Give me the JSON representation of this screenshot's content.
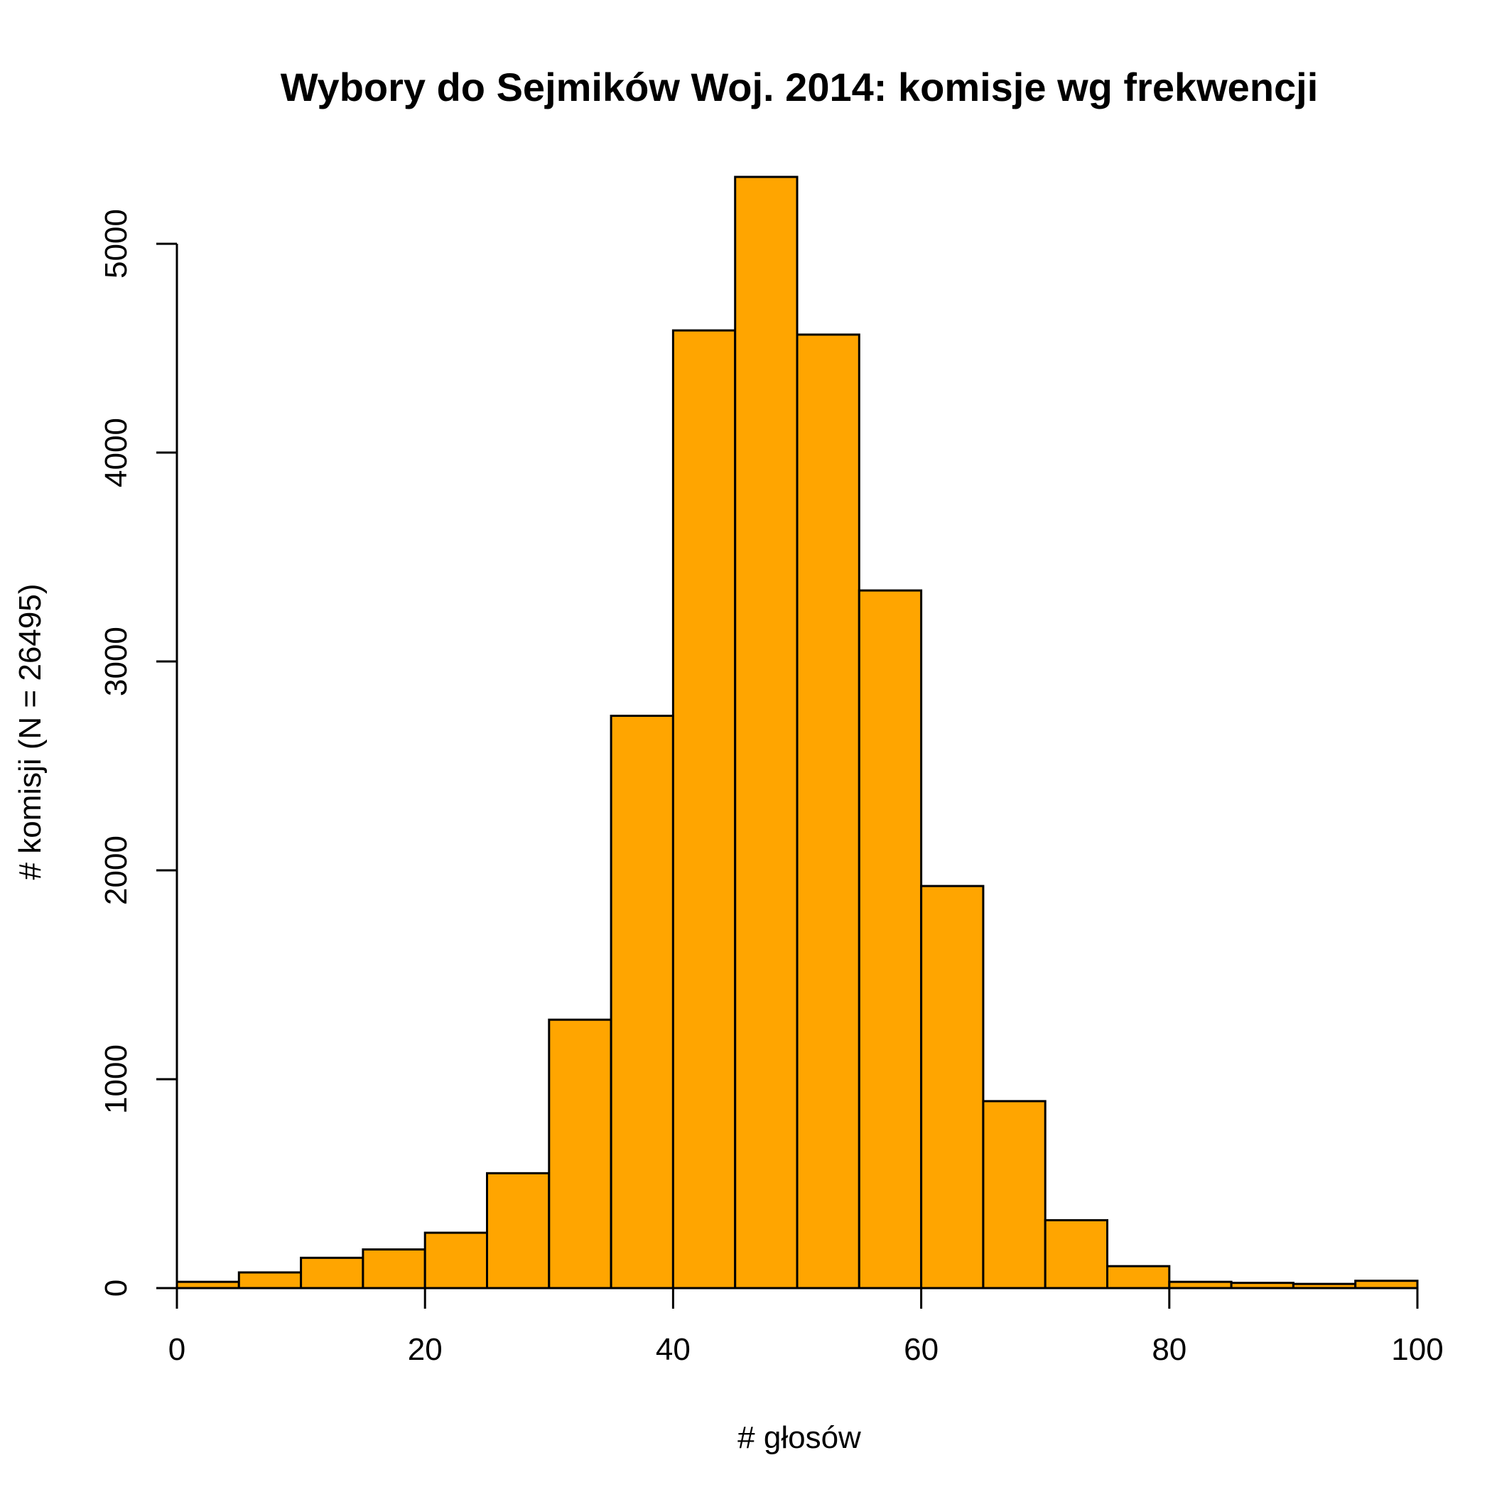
{
  "chart_data": {
    "type": "bar",
    "title": "Wybory do Sejmików Woj. 2014: komisje wg frekwencji",
    "xlabel": "# głosów",
    "ylabel": "# komisji (N = 26495)",
    "bin_edges": [
      0,
      5,
      10,
      15,
      20,
      25,
      30,
      35,
      40,
      45,
      50,
      55,
      60,
      65,
      70,
      75,
      80,
      85,
      90,
      95,
      100
    ],
    "values": [
      30,
      75,
      145,
      185,
      265,
      550,
      1285,
      2740,
      4585,
      5320,
      4565,
      3340,
      1925,
      895,
      325,
      105,
      30,
      25,
      20,
      35
    ],
    "xlim": [
      0,
      100
    ],
    "ylim": [
      0,
      5320
    ],
    "x_ticks": [
      0,
      20,
      40,
      60,
      80,
      100
    ],
    "y_ticks": [
      0,
      1000,
      2000,
      3000,
      4000,
      5000
    ],
    "bar_color": "#FFA500",
    "grid": false
  }
}
